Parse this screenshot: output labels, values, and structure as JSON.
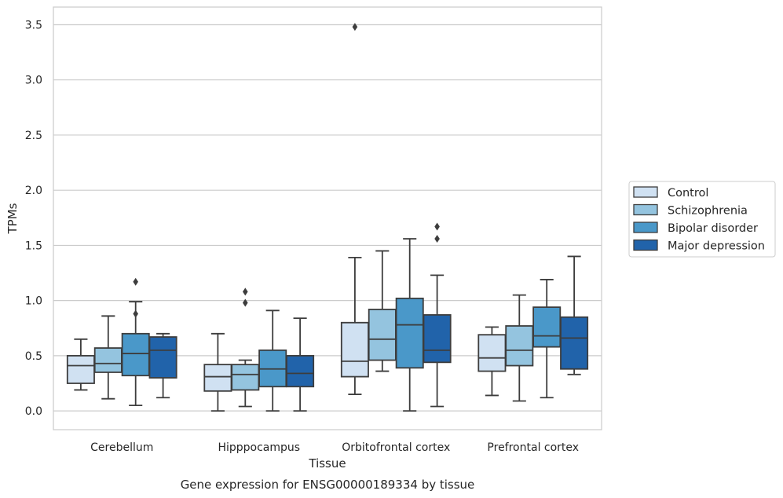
{
  "chart_data": {
    "type": "box",
    "caption": "Gene expression for ENSG00000189334 by tissue",
    "xlabel": "Tissue",
    "ylabel": "TPMs",
    "ylim": [
      -0.17,
      3.66
    ],
    "yticks": [
      "0.0",
      "0.5",
      "1.0",
      "1.5",
      "2.0",
      "2.5",
      "3.0",
      "3.5"
    ],
    "categories": [
      "Cerebellum",
      "Hipppocampus",
      "Orbitofrontal cortex",
      "Prefrontal cortex"
    ],
    "grid": "horizontal",
    "legend_position": "right",
    "series": [
      {
        "name": "Control",
        "color": "#d0e1f2",
        "boxes": [
          {
            "whislo": 0.19,
            "q1": 0.25,
            "med": 0.41,
            "q3": 0.5,
            "whishi": 0.65,
            "fliers": []
          },
          {
            "whislo": 0.0,
            "q1": 0.18,
            "med": 0.31,
            "q3": 0.42,
            "whishi": 0.7,
            "fliers": []
          },
          {
            "whislo": 0.15,
            "q1": 0.31,
            "med": 0.45,
            "q3": 0.8,
            "whishi": 1.39,
            "fliers": [
              3.48
            ]
          },
          {
            "whislo": 0.14,
            "q1": 0.36,
            "med": 0.48,
            "q3": 0.69,
            "whishi": 0.76,
            "fliers": []
          }
        ]
      },
      {
        "name": "Schizophrenia",
        "color": "#94c4df",
        "boxes": [
          {
            "whislo": 0.11,
            "q1": 0.35,
            "med": 0.43,
            "q3": 0.57,
            "whishi": 0.86,
            "fliers": []
          },
          {
            "whislo": 0.04,
            "q1": 0.19,
            "med": 0.33,
            "q3": 0.42,
            "whishi": 0.46,
            "fliers": [
              0.98,
              1.08
            ]
          },
          {
            "whislo": 0.36,
            "q1": 0.46,
            "med": 0.65,
            "q3": 0.92,
            "whishi": 1.45,
            "fliers": []
          },
          {
            "whislo": 0.09,
            "q1": 0.41,
            "med": 0.55,
            "q3": 0.77,
            "whishi": 1.05,
            "fliers": []
          }
        ]
      },
      {
        "name": "Bipolar disorder",
        "color": "#4a98c9",
        "boxes": [
          {
            "whislo": 0.05,
            "q1": 0.32,
            "med": 0.52,
            "q3": 0.7,
            "whishi": 0.99,
            "fliers": [
              0.88,
              1.17
            ]
          },
          {
            "whislo": 0.0,
            "q1": 0.22,
            "med": 0.38,
            "q3": 0.55,
            "whishi": 0.91,
            "fliers": []
          },
          {
            "whislo": 0.0,
            "q1": 0.39,
            "med": 0.78,
            "q3": 1.02,
            "whishi": 1.56,
            "fliers": []
          },
          {
            "whislo": 0.12,
            "q1": 0.58,
            "med": 0.68,
            "q3": 0.94,
            "whishi": 1.19,
            "fliers": []
          }
        ]
      },
      {
        "name": "Major depression",
        "color": "#2163aa",
        "boxes": [
          {
            "whislo": 0.12,
            "q1": 0.3,
            "med": 0.55,
            "q3": 0.67,
            "whishi": 0.7,
            "fliers": []
          },
          {
            "whislo": 0.0,
            "q1": 0.22,
            "med": 0.34,
            "q3": 0.5,
            "whishi": 0.84,
            "fliers": []
          },
          {
            "whislo": 0.04,
            "q1": 0.44,
            "med": 0.55,
            "q3": 0.87,
            "whishi": 1.23,
            "fliers": [
              1.56,
              1.67
            ]
          },
          {
            "whislo": 0.33,
            "q1": 0.38,
            "med": 0.66,
            "q3": 0.85,
            "whishi": 1.4,
            "fliers": []
          }
        ]
      }
    ]
  }
}
